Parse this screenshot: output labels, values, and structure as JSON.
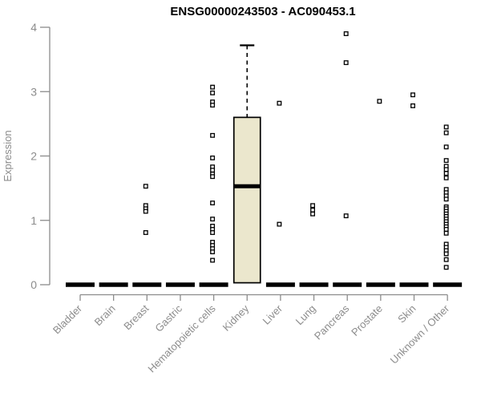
{
  "title": "ENSG00000243503 - AC090453.1",
  "colors": {
    "box_fill": "#EBE7CD",
    "box_stroke": "#000000",
    "median_color": "#000000",
    "axis": "#8C8C8C",
    "tick_label": "#8C8C8C",
    "title_color": "#000000",
    "outlier_stroke": "#000000",
    "outlier_fill": "#FFFFFF"
  },
  "chart_data": {
    "type": "boxplot",
    "title": "ENSG00000243503 - AC090453.1",
    "xlabel": "",
    "ylabel": "Expression",
    "ylim": [
      0,
      4
    ],
    "yticks": [
      0,
      1,
      2,
      3,
      4
    ],
    "grid": false,
    "legend": false,
    "categories": [
      "Bladder",
      "Brain",
      "Breast",
      "Gastric",
      "Hematopoietic cells",
      "Kidney",
      "Liver",
      "Lung",
      "Pancreas",
      "Prostate",
      "Skin",
      "Unknown / Other"
    ],
    "boxes": [
      {
        "category": "Bladder",
        "q1": 0,
        "median": 0,
        "q3": 0,
        "whisker_low": 0,
        "whisker_high": 0,
        "outliers": []
      },
      {
        "category": "Brain",
        "q1": 0,
        "median": 0,
        "q3": 0,
        "whisker_low": 0,
        "whisker_high": 0,
        "outliers": []
      },
      {
        "category": "Breast",
        "q1": 0,
        "median": 0,
        "q3": 0,
        "whisker_low": 0,
        "whisker_high": 0,
        "outliers": [
          1.53,
          1.23,
          1.18,
          1.14,
          0.81
        ]
      },
      {
        "category": "Gastric",
        "q1": 0,
        "median": 0,
        "q3": 0,
        "whisker_low": 0,
        "whisker_high": 0,
        "outliers": []
      },
      {
        "category": "Hematopoietic cells",
        "q1": 0,
        "median": 0,
        "q3": 0,
        "whisker_low": 0,
        "whisker_high": 0,
        "outliers": [
          3.07,
          2.98,
          2.84,
          2.79,
          2.32,
          1.97,
          1.83,
          1.78,
          1.72,
          1.68,
          1.27,
          1.02,
          0.91,
          0.86,
          0.81,
          0.66,
          0.61,
          0.56,
          0.51,
          0.38
        ]
      },
      {
        "category": "Kidney",
        "q1": 0.03,
        "median": 1.53,
        "q3": 2.6,
        "whisker_low": 0.03,
        "whisker_high": 3.72,
        "outliers": []
      },
      {
        "category": "Liver",
        "q1": 0,
        "median": 0,
        "q3": 0,
        "whisker_low": 0,
        "whisker_high": 0,
        "outliers": [
          2.82,
          0.94
        ]
      },
      {
        "category": "Lung",
        "q1": 0,
        "median": 0,
        "q3": 0,
        "whisker_low": 0,
        "whisker_high": 0,
        "outliers": [
          1.23,
          1.16,
          1.1
        ]
      },
      {
        "category": "Pancreas",
        "q1": 0,
        "median": 0,
        "q3": 0,
        "whisker_low": 0,
        "whisker_high": 0,
        "outliers": [
          3.9,
          3.45,
          1.07
        ]
      },
      {
        "category": "Prostate",
        "q1": 0,
        "median": 0,
        "q3": 0,
        "whisker_low": 0,
        "whisker_high": 0,
        "outliers": [
          2.85
        ]
      },
      {
        "category": "Skin",
        "q1": 0,
        "median": 0,
        "q3": 0,
        "whisker_low": 0,
        "whisker_high": 0,
        "outliers": [
          2.95,
          2.78
        ]
      },
      {
        "category": "Unknown / Other",
        "q1": 0,
        "median": 0,
        "q3": 0,
        "whisker_low": 0,
        "whisker_high": 0,
        "outliers": [
          2.45,
          2.36,
          2.14,
          1.93,
          1.84,
          1.79,
          1.73,
          1.66,
          1.48,
          1.43,
          1.38,
          1.33,
          1.21,
          1.18,
          1.14,
          1.1,
          1.06,
          1.02,
          0.98,
          0.94,
          0.9,
          0.86,
          0.8,
          0.63,
          0.58,
          0.53,
          0.48,
          0.39,
          0.27
        ]
      }
    ]
  }
}
